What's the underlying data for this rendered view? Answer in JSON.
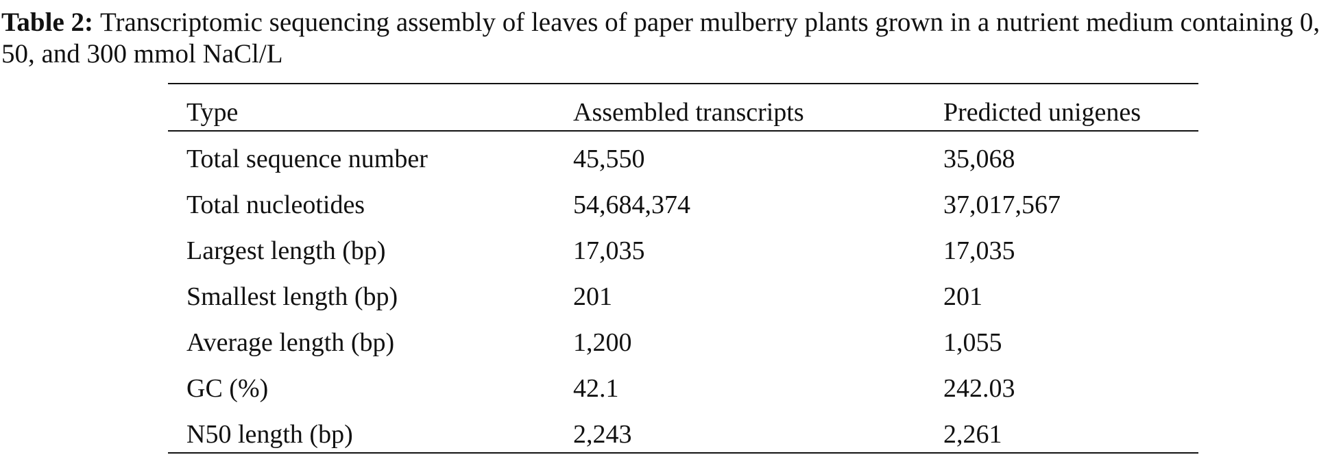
{
  "caption": {
    "label": "Table 2:",
    "text": "Transcriptomic sequencing assembly of leaves of paper mulberry plants grown in a nutrient medium containing 0, 50, and 300 mmol NaCl/L"
  },
  "table": {
    "header": [
      "Type",
      "Assembled transcripts",
      "Predicted unigenes"
    ],
    "rows": [
      [
        "Total sequence number",
        "45,550",
        "35,068"
      ],
      [
        "Total nucleotides",
        "54,684,374",
        "37,017,567"
      ],
      [
        "Largest length (bp)",
        "17,035",
        "17,035"
      ],
      [
        "Smallest length (bp)",
        "201",
        "201"
      ],
      [
        "Average length (bp)",
        "1,200",
        "1,055"
      ],
      [
        "GC (%)",
        "42.1",
        "242.03"
      ],
      [
        "N50 length (bp)",
        "2,243",
        "2,261"
      ]
    ]
  }
}
